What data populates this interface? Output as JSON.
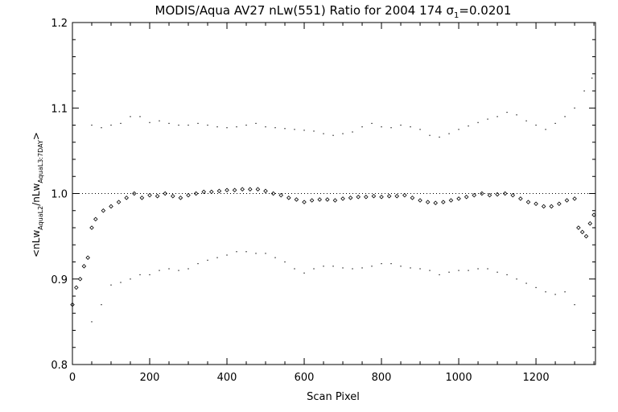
{
  "chart_data": {
    "type": "scatter",
    "title_main": "MODIS/Aqua AV27 nLw(551) Ratio for 2004 174 ",
    "title_sigma": "σ",
    "title_sigma_sub": "1",
    "title_value": "=0.0201",
    "xlabel": "Scan Pixel",
    "ylabel_parts": {
      "open": "<nLw",
      "sub1": "AquaL2",
      "mid": "/nLw",
      "sub2": "AquaL3:7DAY",
      "close": ">"
    },
    "xlim": [
      0,
      1354
    ],
    "ylim": [
      0.8,
      1.2
    ],
    "x_ticks": [
      {
        "value": 0,
        "label": "0"
      },
      {
        "value": 200,
        "label": "200"
      },
      {
        "value": 400,
        "label": "400"
      },
      {
        "value": 600,
        "label": "600"
      },
      {
        "value": 800,
        "label": "800"
      },
      {
        "value": 1000,
        "label": "1000"
      },
      {
        "value": 1200,
        "label": "1200"
      }
    ],
    "y_ticks": [
      {
        "value": 0.8,
        "label": "0.8"
      },
      {
        "value": 0.9,
        "label": "0.9"
      },
      {
        "value": 1.0,
        "label": "1.0"
      },
      {
        "value": 1.1,
        "label": "1.1"
      },
      {
        "value": 1.2,
        "label": "1.2"
      }
    ],
    "reference_line": 1.0,
    "series": [
      {
        "role": "mean ratio",
        "marker": "diamond",
        "points": [
          [
            0,
            0.87
          ],
          [
            10,
            0.89
          ],
          [
            20,
            0.9
          ],
          [
            30,
            0.915
          ],
          [
            40,
            0.925
          ],
          [
            50,
            0.96
          ],
          [
            60,
            0.97
          ],
          [
            80,
            0.98
          ],
          [
            100,
            0.985
          ],
          [
            120,
            0.99
          ],
          [
            140,
            0.995
          ],
          [
            160,
            1.0
          ],
          [
            180,
            0.995
          ],
          [
            200,
            0.998
          ],
          [
            220,
            0.997
          ],
          [
            240,
            1.0
          ],
          [
            260,
            0.997
          ],
          [
            280,
            0.995
          ],
          [
            300,
            0.998
          ],
          [
            320,
            1.0
          ],
          [
            340,
            1.002
          ],
          [
            360,
            1.002
          ],
          [
            380,
            1.003
          ],
          [
            400,
            1.004
          ],
          [
            420,
            1.004
          ],
          [
            440,
            1.005
          ],
          [
            460,
            1.005
          ],
          [
            480,
            1.005
          ],
          [
            500,
            1.003
          ],
          [
            520,
            1.0
          ],
          [
            540,
            0.998
          ],
          [
            560,
            0.995
          ],
          [
            580,
            0.993
          ],
          [
            600,
            0.99
          ],
          [
            620,
            0.992
          ],
          [
            640,
            0.993
          ],
          [
            660,
            0.993
          ],
          [
            680,
            0.992
          ],
          [
            700,
            0.994
          ],
          [
            720,
            0.995
          ],
          [
            740,
            0.996
          ],
          [
            760,
            0.996
          ],
          [
            780,
            0.997
          ],
          [
            800,
            0.996
          ],
          [
            820,
            0.997
          ],
          [
            840,
            0.997
          ],
          [
            860,
            0.998
          ],
          [
            880,
            0.995
          ],
          [
            900,
            0.992
          ],
          [
            920,
            0.99
          ],
          [
            940,
            0.989
          ],
          [
            960,
            0.99
          ],
          [
            980,
            0.992
          ],
          [
            1000,
            0.994
          ],
          [
            1020,
            0.996
          ],
          [
            1040,
            0.998
          ],
          [
            1060,
            1.0
          ],
          [
            1080,
            0.998
          ],
          [
            1100,
            0.999
          ],
          [
            1120,
            1.0
          ],
          [
            1140,
            0.998
          ],
          [
            1160,
            0.994
          ],
          [
            1180,
            0.99
          ],
          [
            1200,
            0.988
          ],
          [
            1220,
            0.985
          ],
          [
            1240,
            0.985
          ],
          [
            1260,
            0.988
          ],
          [
            1280,
            0.992
          ],
          [
            1300,
            0.994
          ],
          [
            1310,
            0.96
          ],
          [
            1320,
            0.955
          ],
          [
            1330,
            0.95
          ],
          [
            1340,
            0.965
          ],
          [
            1350,
            0.975
          ]
        ]
      },
      {
        "role": "upper bound",
        "marker": "dot",
        "points": [
          [
            50,
            1.08
          ],
          [
            75,
            1.077
          ],
          [
            100,
            1.08
          ],
          [
            125,
            1.082
          ],
          [
            150,
            1.09
          ],
          [
            175,
            1.09
          ],
          [
            200,
            1.083
          ],
          [
            225,
            1.085
          ],
          [
            250,
            1.082
          ],
          [
            275,
            1.08
          ],
          [
            300,
            1.08
          ],
          [
            325,
            1.082
          ],
          [
            350,
            1.08
          ],
          [
            375,
            1.078
          ],
          [
            400,
            1.077
          ],
          [
            425,
            1.078
          ],
          [
            450,
            1.08
          ],
          [
            475,
            1.082
          ],
          [
            500,
            1.078
          ],
          [
            525,
            1.077
          ],
          [
            550,
            1.076
          ],
          [
            575,
            1.075
          ],
          [
            600,
            1.074
          ],
          [
            625,
            1.073
          ],
          [
            650,
            1.07
          ],
          [
            675,
            1.068
          ],
          [
            700,
            1.07
          ],
          [
            725,
            1.072
          ],
          [
            750,
            1.078
          ],
          [
            775,
            1.082
          ],
          [
            800,
            1.078
          ],
          [
            825,
            1.077
          ],
          [
            850,
            1.08
          ],
          [
            875,
            1.078
          ],
          [
            900,
            1.075
          ],
          [
            925,
            1.068
          ],
          [
            950,
            1.066
          ],
          [
            975,
            1.07
          ],
          [
            1000,
            1.075
          ],
          [
            1025,
            1.079
          ],
          [
            1050,
            1.083
          ],
          [
            1075,
            1.087
          ],
          [
            1100,
            1.09
          ],
          [
            1125,
            1.095
          ],
          [
            1150,
            1.092
          ],
          [
            1175,
            1.085
          ],
          [
            1200,
            1.08
          ],
          [
            1225,
            1.075
          ],
          [
            1250,
            1.082
          ],
          [
            1275,
            1.09
          ],
          [
            1300,
            1.1
          ],
          [
            1325,
            1.12
          ],
          [
            1345,
            1.135
          ]
        ]
      },
      {
        "role": "lower bound",
        "marker": "dot",
        "points": [
          [
            50,
            0.85
          ],
          [
            75,
            0.87
          ],
          [
            100,
            0.893
          ],
          [
            125,
            0.896
          ],
          [
            150,
            0.9
          ],
          [
            175,
            0.905
          ],
          [
            200,
            0.905
          ],
          [
            225,
            0.91
          ],
          [
            250,
            0.912
          ],
          [
            275,
            0.91
          ],
          [
            300,
            0.912
          ],
          [
            325,
            0.918
          ],
          [
            350,
            0.922
          ],
          [
            375,
            0.925
          ],
          [
            400,
            0.928
          ],
          [
            425,
            0.932
          ],
          [
            450,
            0.932
          ],
          [
            475,
            0.93
          ],
          [
            500,
            0.93
          ],
          [
            525,
            0.925
          ],
          [
            550,
            0.92
          ],
          [
            575,
            0.912
          ],
          [
            600,
            0.907
          ],
          [
            625,
            0.912
          ],
          [
            650,
            0.915
          ],
          [
            675,
            0.915
          ],
          [
            700,
            0.913
          ],
          [
            725,
            0.912
          ],
          [
            750,
            0.913
          ],
          [
            775,
            0.915
          ],
          [
            800,
            0.918
          ],
          [
            825,
            0.918
          ],
          [
            850,
            0.915
          ],
          [
            875,
            0.913
          ],
          [
            900,
            0.912
          ],
          [
            925,
            0.91
          ],
          [
            950,
            0.905
          ],
          [
            975,
            0.908
          ],
          [
            1000,
            0.91
          ],
          [
            1025,
            0.91
          ],
          [
            1050,
            0.912
          ],
          [
            1075,
            0.912
          ],
          [
            1100,
            0.908
          ],
          [
            1125,
            0.905
          ],
          [
            1150,
            0.9
          ],
          [
            1175,
            0.895
          ],
          [
            1200,
            0.89
          ],
          [
            1225,
            0.885
          ],
          [
            1250,
            0.882
          ],
          [
            1275,
            0.885
          ],
          [
            1300,
            0.87
          ]
        ]
      }
    ]
  }
}
